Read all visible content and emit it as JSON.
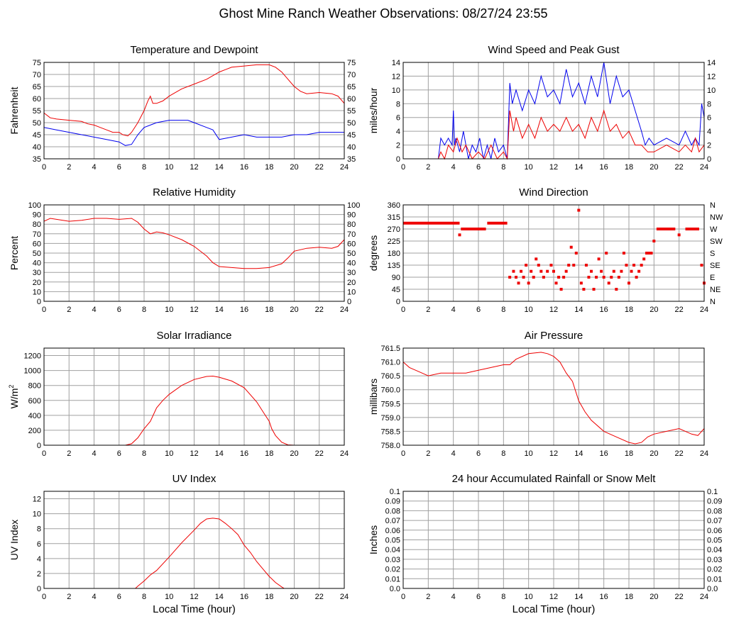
{
  "page_title": "Ghost Mine Ranch Weather Observations: 08/27/24 23:55",
  "colors": {
    "red": "#ee0000",
    "blue": "#0000ee",
    "grid": "#a0a0a0",
    "frame": "#000000"
  },
  "chart_data": [
    {
      "id": "temp",
      "type": "line",
      "title": "Temperature and Dewpoint",
      "xlabel": "",
      "ylabel": "Fahrenheit",
      "xlim": [
        0,
        24
      ],
      "ylim": [
        35,
        75
      ],
      "xticks": [
        0,
        2,
        4,
        6,
        8,
        10,
        12,
        14,
        16,
        18,
        20,
        22,
        24
      ],
      "yticks": [
        35,
        40,
        45,
        50,
        55,
        60,
        65,
        70,
        75
      ],
      "right_axis": true,
      "series": [
        {
          "color": "red",
          "x": [
            0,
            0.5,
            1,
            2,
            3,
            3.5,
            4,
            4.5,
            5,
            5.5,
            6,
            6.3,
            6.7,
            7,
            7.5,
            8,
            8.3,
            8.5,
            8.7,
            9,
            9.5,
            10,
            11,
            12,
            13,
            14,
            14.5,
            15,
            16,
            17,
            17.5,
            18,
            18.5,
            19,
            19.5,
            20,
            20.5,
            21,
            22,
            23,
            23.5,
            24
          ],
          "y": [
            54,
            52,
            51.5,
            51,
            50.5,
            49.5,
            49,
            48,
            47,
            46,
            46,
            45,
            44.5,
            46,
            50,
            55,
            59,
            61,
            58,
            58,
            59,
            61,
            64,
            66,
            68,
            71,
            72,
            73,
            73.5,
            74,
            74,
            74,
            73,
            71,
            68,
            65,
            63,
            62,
            62.5,
            62,
            61,
            58
          ]
        },
        {
          "color": "blue",
          "x": [
            0,
            0.5,
            1,
            2,
            3,
            4,
            5,
            5.5,
            6,
            6.5,
            7,
            7.5,
            8,
            8.5,
            9,
            10,
            11,
            11.5,
            12,
            13,
            13.5,
            14,
            15,
            16,
            17,
            18,
            19,
            20,
            21,
            22,
            23,
            24
          ],
          "y": [
            48,
            47.5,
            47,
            46,
            45,
            44,
            43,
            42.5,
            42,
            40.5,
            41,
            45,
            48,
            49,
            50,
            51,
            51,
            51,
            50,
            48,
            47,
            43,
            44,
            45,
            44,
            44,
            44,
            45,
            45,
            46,
            46,
            46
          ]
        }
      ]
    },
    {
      "id": "wind",
      "type": "line",
      "title": "Wind Speed and Peak Gust",
      "xlabel": "",
      "ylabel": "miles/hour",
      "xlim": [
        0,
        24
      ],
      "ylim": [
        0,
        14
      ],
      "xticks": [
        0,
        2,
        4,
        6,
        8,
        10,
        12,
        14,
        16,
        18,
        20,
        22,
        24
      ],
      "yticks": [
        0,
        2,
        4,
        6,
        8,
        10,
        12,
        14
      ],
      "right_axis": true,
      "series": [
        {
          "color": "blue",
          "x": [
            0,
            2.8,
            3,
            3.3,
            3.6,
            3.9,
            4,
            4.1,
            4.2,
            4.5,
            4.8,
            5.2,
            5.5,
            5.8,
            6.1,
            6.4,
            6.7,
            7,
            7.3,
            7.6,
            8,
            8.3,
            8.5,
            8.7,
            9,
            9.5,
            10,
            10.5,
            11,
            11.5,
            12,
            12.5,
            13,
            13.5,
            14,
            14.5,
            15,
            15.5,
            16,
            16.5,
            17,
            17.5,
            18,
            18.5,
            19,
            19.3,
            19.6,
            20,
            21,
            22,
            22.5,
            23,
            23.3,
            23.6,
            23.8,
            24
          ],
          "y": [
            0,
            0,
            3,
            2,
            3,
            2,
            7,
            2,
            3,
            1,
            4,
            0,
            2,
            1,
            3,
            0,
            2,
            0,
            3,
            1,
            2,
            0,
            11,
            8,
            10,
            7,
            10,
            8,
            12,
            9,
            10,
            8,
            13,
            9,
            11,
            8,
            12,
            9,
            14,
            8,
            12,
            9,
            10,
            7,
            4,
            2,
            3,
            2,
            3,
            2,
            4,
            2,
            3,
            2,
            8,
            6
          ]
        },
        {
          "color": "red",
          "x": [
            0,
            2.8,
            3,
            3.3,
            3.6,
            4,
            4.3,
            4.7,
            5,
            5.5,
            6,
            6.5,
            7,
            7.5,
            8,
            8.3,
            8.5,
            8.8,
            9,
            9.5,
            10,
            10.5,
            11,
            11.5,
            12,
            12.5,
            13,
            13.5,
            14,
            14.5,
            15,
            15.5,
            16,
            16.5,
            17,
            17.5,
            18,
            18.5,
            19,
            19.5,
            20,
            21,
            22,
            22.5,
            23,
            23.3,
            23.6,
            24
          ],
          "y": [
            0,
            0,
            1,
            0,
            2,
            1,
            3,
            1,
            2,
            0,
            1,
            0,
            2,
            0,
            1,
            0,
            7,
            4,
            6,
            3,
            5,
            3,
            6,
            4,
            5,
            4,
            6,
            4,
            5,
            3,
            6,
            4,
            7,
            4,
            5,
            3,
            4,
            2,
            2,
            1,
            1,
            2,
            1,
            2,
            1,
            3,
            1,
            2
          ]
        }
      ]
    },
    {
      "id": "rh",
      "type": "line",
      "title": "Relative Humidity",
      "xlabel": "",
      "ylabel": "Percent",
      "xlim": [
        0,
        24
      ],
      "ylim": [
        0,
        100
      ],
      "xticks": [
        0,
        2,
        4,
        6,
        8,
        10,
        12,
        14,
        16,
        18,
        20,
        22,
        24
      ],
      "yticks": [
        0,
        10,
        20,
        30,
        40,
        50,
        60,
        70,
        80,
        90,
        100
      ],
      "right_axis": true,
      "series": [
        {
          "color": "red",
          "x": [
            0,
            0.5,
            1,
            2,
            3,
            4,
            5,
            6,
            7,
            7.5,
            8,
            8.5,
            9,
            9.5,
            10,
            11,
            12,
            13,
            13.5,
            14,
            15,
            16,
            17,
            18,
            19,
            19.5,
            20,
            21,
            22,
            23,
            23.5,
            24
          ],
          "y": [
            83,
            86,
            85,
            83,
            84,
            86,
            86,
            85,
            86,
            82,
            75,
            70,
            72,
            71,
            69,
            64,
            57,
            47,
            40,
            36,
            35,
            34,
            34,
            35,
            39,
            45,
            52,
            55,
            56,
            55,
            57,
            64
          ]
        }
      ]
    },
    {
      "id": "wdir",
      "type": "scatter",
      "title": "Wind Direction",
      "xlabel": "",
      "ylabel": "degrees",
      "xlim": [
        0,
        24
      ],
      "ylim": [
        0,
        360
      ],
      "xticks": [
        0,
        2,
        4,
        6,
        8,
        10,
        12,
        14,
        16,
        18,
        20,
        22,
        24
      ],
      "yticks": [
        0,
        45,
        90,
        135,
        180,
        225,
        270,
        315,
        360
      ],
      "right_labels": [
        "N",
        "NE",
        "E",
        "SE",
        "S",
        "SW",
        "W",
        "NW",
        "N"
      ],
      "series": [
        {
          "color": "red",
          "segments": [
            {
              "x": [
                0,
                4.5
              ],
              "y": 292
            },
            {
              "x": [
                4.6,
                6.6
              ],
              "y": 270
            },
            {
              "x": [
                6.7,
                8.3
              ],
              "y": 292
            },
            {
              "x": [
                19.3,
                19.9
              ],
              "y": 180
            },
            {
              "x": [
                20.2,
                21.7
              ],
              "y": 270
            },
            {
              "x": [
                22.5,
                23.6
              ],
              "y": 270
            }
          ],
          "x": [
            4.5,
            8.5,
            8.8,
            9,
            9.2,
            9.4,
            9.6,
            9.8,
            10,
            10.2,
            10.4,
            10.6,
            10.8,
            11,
            11.2,
            11.5,
            11.8,
            12,
            12.2,
            12.4,
            12.6,
            12.8,
            13,
            13.2,
            13.4,
            13.6,
            13.8,
            14,
            14.2,
            14.4,
            14.6,
            14.8,
            15,
            15.2,
            15.4,
            15.6,
            15.8,
            16,
            16.2,
            16.4,
            16.6,
            16.8,
            17,
            17.2,
            17.4,
            17.6,
            17.8,
            18,
            18.2,
            18.4,
            18.6,
            18.8,
            19,
            19.2,
            20,
            22,
            23.8,
            24
          ],
          "y": [
            248,
            90,
            112,
            90,
            68,
            112,
            90,
            135,
            68,
            112,
            90,
            158,
            135,
            112,
            90,
            112,
            135,
            112,
            68,
            90,
            45,
            90,
            112,
            135,
            202,
            135,
            180,
            340,
            68,
            45,
            135,
            90,
            112,
            45,
            90,
            158,
            112,
            90,
            180,
            68,
            90,
            112,
            45,
            90,
            112,
            180,
            135,
            68,
            112,
            135,
            90,
            112,
            135,
            158,
            225,
            248,
            135,
            68
          ]
        }
      ]
    },
    {
      "id": "solar",
      "type": "line",
      "title": "Solar Irradiance",
      "xlabel": "",
      "ylabel": "W/m",
      "ylabel_sup": "2",
      "xlim": [
        0,
        24
      ],
      "ylim": [
        0,
        1300
      ],
      "xticks": [
        0,
        2,
        4,
        6,
        8,
        10,
        12,
        14,
        16,
        18,
        20,
        22,
        24
      ],
      "yticks": [
        0,
        200,
        400,
        600,
        800,
        1000,
        1200
      ],
      "right_axis": false,
      "series": [
        {
          "color": "red",
          "x": [
            0,
            6.5,
            7,
            7.5,
            8,
            8.5,
            9,
            9.5,
            10,
            11,
            12,
            13,
            13.5,
            14,
            15,
            16,
            17,
            17.5,
            18,
            18.2,
            18.5,
            19,
            19.5,
            20,
            24
          ],
          "y": [
            0,
            0,
            20,
            100,
            220,
            320,
            500,
            600,
            680,
            800,
            880,
            920,
            925,
            910,
            860,
            770,
            580,
            450,
            320,
            220,
            130,
            40,
            5,
            0,
            0
          ]
        }
      ]
    },
    {
      "id": "pressure",
      "type": "line",
      "title": "Air Pressure",
      "xlabel": "",
      "ylabel": "millibars",
      "xlim": [
        0,
        24
      ],
      "ylim": [
        758.0,
        761.5
      ],
      "xticks": [
        0,
        2,
        4,
        6,
        8,
        10,
        12,
        14,
        16,
        18,
        20,
        22,
        24
      ],
      "yticks": [
        758.0,
        758.5,
        759.0,
        759.5,
        760.0,
        760.5,
        761.0,
        761.5
      ],
      "ytick_labels": [
        "758.0",
        "758.5",
        "759.0",
        "759.5",
        "760.0",
        "760.5",
        "761.0",
        "761.5"
      ],
      "right_axis": false,
      "series": [
        {
          "color": "red",
          "x": [
            0,
            0.5,
            1,
            1.5,
            2,
            3,
            4,
            5,
            6,
            7,
            8,
            8.5,
            9,
            10,
            11,
            11.5,
            12,
            12.5,
            13,
            13.5,
            14,
            14.5,
            15,
            16,
            17,
            18,
            18.5,
            19,
            19.5,
            20,
            21,
            22,
            23,
            23.5,
            24
          ],
          "y": [
            761.0,
            760.8,
            760.7,
            760.6,
            760.5,
            760.6,
            760.6,
            760.6,
            760.7,
            760.8,
            760.9,
            760.9,
            761.1,
            761.3,
            761.35,
            761.3,
            761.2,
            761.0,
            760.6,
            760.3,
            759.6,
            759.2,
            758.9,
            758.5,
            758.3,
            758.1,
            758.05,
            758.1,
            758.3,
            758.4,
            758.5,
            758.6,
            758.4,
            758.35,
            758.6
          ]
        }
      ]
    },
    {
      "id": "uv",
      "type": "line",
      "title": "UV Index",
      "xlabel": "Local Time (hour)",
      "ylabel": "UV Index",
      "xlim": [
        0,
        24
      ],
      "ylim": [
        0,
        13
      ],
      "xticks": [
        0,
        2,
        4,
        6,
        8,
        10,
        12,
        14,
        16,
        18,
        20,
        22,
        24
      ],
      "yticks": [
        0,
        2,
        4,
        6,
        8,
        10,
        12
      ],
      "right_axis": false,
      "series": [
        {
          "color": "red",
          "x": [
            0,
            7.3,
            7.5,
            8,
            8.5,
            9,
            10,
            11,
            12,
            12.5,
            13,
            13.5,
            14,
            14.5,
            15,
            15.5,
            16,
            16.5,
            17,
            17.5,
            18,
            18.5,
            19,
            19.2,
            24
          ],
          "y": [
            0,
            0,
            0.3,
            1,
            1.8,
            2.4,
            4.2,
            6.1,
            7.8,
            8.7,
            9.3,
            9.4,
            9.3,
            8.7,
            8.0,
            7.2,
            5.8,
            4.8,
            3.6,
            2.6,
            1.6,
            0.8,
            0.2,
            0,
            0
          ]
        }
      ]
    },
    {
      "id": "rain",
      "type": "line",
      "title": "24 hour Accumulated Rainfall or Snow Melt",
      "xlabel": "Local Time (hour)",
      "ylabel": "Inches",
      "xlim": [
        0,
        24
      ],
      "ylim": [
        0,
        0.1
      ],
      "xticks": [
        0,
        2,
        4,
        6,
        8,
        10,
        12,
        14,
        16,
        18,
        20,
        22,
        24
      ],
      "yticks": [
        0,
        0.01,
        0.02,
        0.03,
        0.04,
        0.05,
        0.06,
        0.07,
        0.08,
        0.09,
        0.1
      ],
      "ytick_labels": [
        "0.0",
        "0.01",
        "0.02",
        "0.03",
        "0.04",
        "0.05",
        "0.06",
        "0.07",
        "0.08",
        "0.09",
        "0.1"
      ],
      "right_axis": true,
      "series": [
        {
          "color": "red",
          "x": [
            0,
            24
          ],
          "y": [
            0,
            0
          ]
        }
      ]
    }
  ]
}
